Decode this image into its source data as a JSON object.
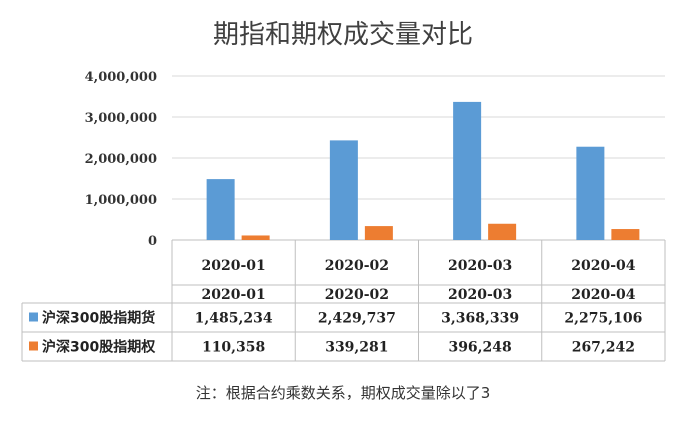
{
  "chart_data": {
    "type": "bar",
    "title": "期指和期权成交量对比",
    "categories": [
      "2020-01",
      "2020-02",
      "2020-03",
      "2020-04"
    ],
    "series": [
      {
        "name": "沪深300股指期货",
        "values": [
          1485234,
          2429737,
          3368339,
          2275106
        ],
        "color": "#5b9bd5"
      },
      {
        "name": "沪深300股指期权",
        "values": [
          110358,
          339281,
          396248,
          267242
        ],
        "color": "#ed7d31"
      }
    ],
    "series_labels": [
      [
        "1,485,234",
        "2,429,737",
        "3,368,339",
        "2,275,106"
      ],
      [
        "110,358",
        "339,281",
        "396,248",
        "267,242"
      ]
    ],
    "yticks": [
      "0",
      "1,000,000",
      "2,000,000",
      "3,000,000",
      "4,000,000"
    ],
    "ylim": [
      0,
      4000000
    ],
    "grid": true,
    "legend": "data-table"
  },
  "note": "注：根据合约乘数关系，期权成交量除以了3"
}
